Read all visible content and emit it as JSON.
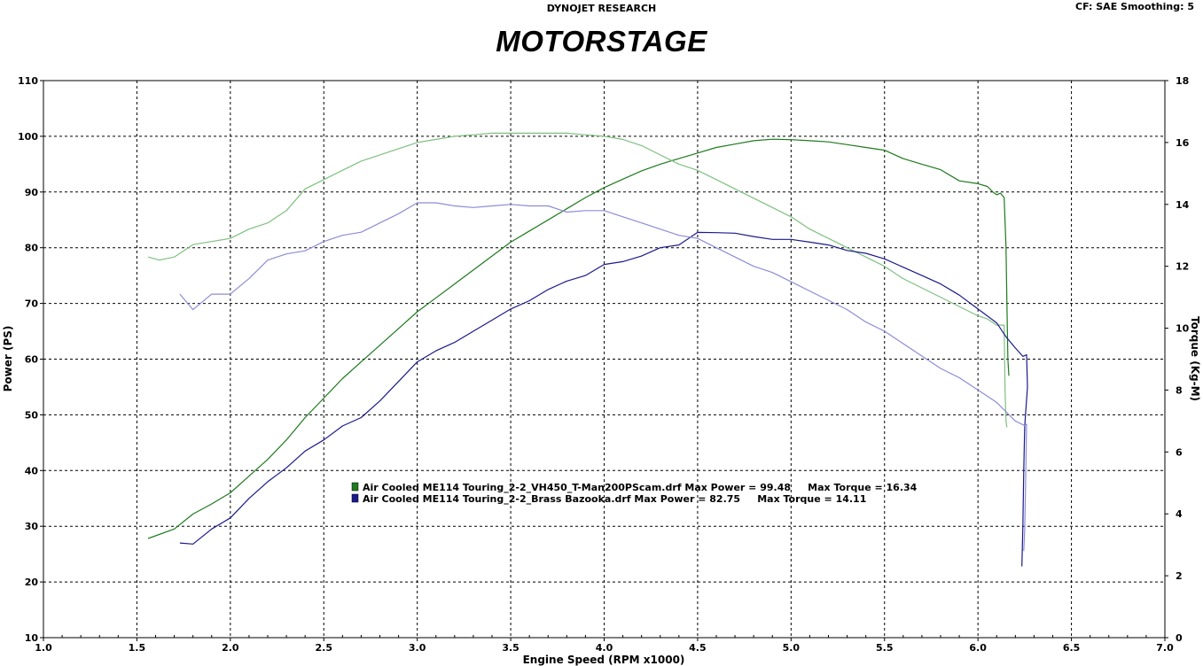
{
  "header": {
    "company": "DYNOJET RESEARCH",
    "settings": "CF: SAE  Smoothing: 5",
    "title": "MOTORSTAGE"
  },
  "chart_data": {
    "type": "line",
    "xlabel": "Engine Speed (RPM x1000)",
    "ylabel_left": "Power (PS)",
    "ylabel_right": "Torque (Kg-M)",
    "xlim": [
      1.0,
      7.0
    ],
    "ylim_left": [
      10,
      110
    ],
    "ylim_right": [
      0,
      18
    ],
    "x_ticks": [
      "1.0",
      "1.5",
      "2.0",
      "2.5",
      "3.0",
      "3.5",
      "4.0",
      "4.5",
      "5.0",
      "5.5",
      "6.0",
      "6.5",
      "7.0"
    ],
    "y_left_ticks": [
      "10",
      "20",
      "30",
      "40",
      "50",
      "60",
      "70",
      "80",
      "90",
      "100",
      "110"
    ],
    "y_right_ticks": [
      "0",
      "2",
      "4",
      "6",
      "8",
      "10",
      "12",
      "14",
      "16",
      "18"
    ],
    "grid": true,
    "legend_position": "center",
    "colors": {
      "run1_power": "#1e7a1e",
      "run1_torque": "#7fc07f",
      "run2_power": "#1a1a8c",
      "run2_torque": "#8c8cd8",
      "grid": "#000000"
    },
    "legend": [
      "Air Cooled ME114 Touring_2-2_VH450_T-Man200PScam.drf Max Power = 99.48     Max Torque = 16.34",
      "Air Cooled ME114 Touring_2-2_Brass Bazooka.drf Max Power = 82.75     Max Torque = 14.11"
    ],
    "series": [
      {
        "name": "Air Cooled ME114 Touring_2-2_VH450_T-Man200PScam.drf",
        "measure": "power",
        "axis": "left",
        "color": "#1e7a1e",
        "points": [
          [
            1.56,
            27.8
          ],
          [
            1.7,
            29.5
          ],
          [
            1.8,
            32.2
          ],
          [
            1.9,
            34.0
          ],
          [
            2.0,
            36.0
          ],
          [
            2.1,
            39.0
          ],
          [
            2.2,
            42.0
          ],
          [
            2.3,
            45.5
          ],
          [
            2.4,
            49.5
          ],
          [
            2.5,
            53.0
          ],
          [
            2.6,
            56.5
          ],
          [
            2.7,
            59.5
          ],
          [
            2.8,
            62.5
          ],
          [
            2.9,
            65.5
          ],
          [
            3.0,
            68.5
          ],
          [
            3.1,
            71.0
          ],
          [
            3.2,
            73.5
          ],
          [
            3.3,
            76.0
          ],
          [
            3.4,
            78.5
          ],
          [
            3.5,
            81.0
          ],
          [
            3.6,
            83.0
          ],
          [
            3.7,
            85.0
          ],
          [
            3.8,
            87.0
          ],
          [
            3.9,
            89.0
          ],
          [
            4.0,
            90.8
          ],
          [
            4.1,
            92.3
          ],
          [
            4.2,
            93.8
          ],
          [
            4.3,
            95.0
          ],
          [
            4.4,
            96.0
          ],
          [
            4.5,
            97.0
          ],
          [
            4.6,
            98.0
          ],
          [
            4.7,
            98.6
          ],
          [
            4.8,
            99.2
          ],
          [
            4.9,
            99.48
          ],
          [
            5.0,
            99.4
          ],
          [
            5.1,
            99.2
          ],
          [
            5.2,
            99.0
          ],
          [
            5.3,
            98.5
          ],
          [
            5.4,
            98.0
          ],
          [
            5.5,
            97.5
          ],
          [
            5.6,
            96.0
          ],
          [
            5.7,
            95.0
          ],
          [
            5.8,
            94.0
          ],
          [
            5.9,
            92.0
          ],
          [
            6.0,
            91.5
          ],
          [
            6.05,
            91.0
          ],
          [
            6.08,
            90.0
          ],
          [
            6.1,
            89.5
          ],
          [
            6.12,
            89.8
          ],
          [
            6.14,
            89.0
          ],
          [
            6.15,
            80.0
          ],
          [
            6.155,
            70.0
          ],
          [
            6.16,
            60.0
          ],
          [
            6.165,
            57.0
          ]
        ]
      },
      {
        "name": "Air Cooled ME114 Touring_2-2_VH450_T-Man200PScam.drf",
        "measure": "torque",
        "axis": "right",
        "color": "#7fc07f",
        "points": [
          [
            1.56,
            12.3
          ],
          [
            1.62,
            12.2
          ],
          [
            1.7,
            12.3
          ],
          [
            1.8,
            12.7
          ],
          [
            1.9,
            12.8
          ],
          [
            2.0,
            12.9
          ],
          [
            2.1,
            13.2
          ],
          [
            2.2,
            13.4
          ],
          [
            2.3,
            13.8
          ],
          [
            2.4,
            14.5
          ],
          [
            2.5,
            14.8
          ],
          [
            2.6,
            15.1
          ],
          [
            2.7,
            15.4
          ],
          [
            2.8,
            15.6
          ],
          [
            2.9,
            15.8
          ],
          [
            3.0,
            16.0
          ],
          [
            3.1,
            16.1
          ],
          [
            3.2,
            16.2
          ],
          [
            3.3,
            16.25
          ],
          [
            3.4,
            16.3
          ],
          [
            3.5,
            16.3
          ],
          [
            3.6,
            16.3
          ],
          [
            3.7,
            16.3
          ],
          [
            3.8,
            16.3
          ],
          [
            3.9,
            16.25
          ],
          [
            4.0,
            16.2
          ],
          [
            4.1,
            16.1
          ],
          [
            4.2,
            15.9
          ],
          [
            4.3,
            15.6
          ],
          [
            4.4,
            15.3
          ],
          [
            4.5,
            15.1
          ],
          [
            4.6,
            14.8
          ],
          [
            4.7,
            14.5
          ],
          [
            4.8,
            14.2
          ],
          [
            4.9,
            13.9
          ],
          [
            5.0,
            13.6
          ],
          [
            5.1,
            13.2
          ],
          [
            5.2,
            12.9
          ],
          [
            5.3,
            12.6
          ],
          [
            5.4,
            12.3
          ],
          [
            5.5,
            12.0
          ],
          [
            5.6,
            11.6
          ],
          [
            5.7,
            11.3
          ],
          [
            5.8,
            11.0
          ],
          [
            5.9,
            10.7
          ],
          [
            6.0,
            10.4
          ],
          [
            6.05,
            10.3
          ],
          [
            6.1,
            10.1
          ],
          [
            6.14,
            10.1
          ],
          [
            6.145,
            8.0
          ],
          [
            6.15,
            7.0
          ],
          [
            6.155,
            6.8
          ]
        ]
      },
      {
        "name": "Air Cooled ME114 Touring_2-2_Brass Bazooka.drf",
        "measure": "power",
        "axis": "left",
        "color": "#1a1a8c",
        "points": [
          [
            1.73,
            27.0
          ],
          [
            1.8,
            26.8
          ],
          [
            1.9,
            29.5
          ],
          [
            2.0,
            31.5
          ],
          [
            2.1,
            35.0
          ],
          [
            2.2,
            38.0
          ],
          [
            2.3,
            40.5
          ],
          [
            2.4,
            43.5
          ],
          [
            2.5,
            45.5
          ],
          [
            2.6,
            48.0
          ],
          [
            2.7,
            49.5
          ],
          [
            2.8,
            52.5
          ],
          [
            2.9,
            56.0
          ],
          [
            3.0,
            59.5
          ],
          [
            3.1,
            61.5
          ],
          [
            3.2,
            63.0
          ],
          [
            3.3,
            65.0
          ],
          [
            3.4,
            67.0
          ],
          [
            3.5,
            69.0
          ],
          [
            3.6,
            70.5
          ],
          [
            3.7,
            72.5
          ],
          [
            3.8,
            74.0
          ],
          [
            3.9,
            75.0
          ],
          [
            4.0,
            77.0
          ],
          [
            4.1,
            77.5
          ],
          [
            4.2,
            78.5
          ],
          [
            4.3,
            80.0
          ],
          [
            4.4,
            80.5
          ],
          [
            4.5,
            82.75
          ],
          [
            4.6,
            82.7
          ],
          [
            4.7,
            82.6
          ],
          [
            4.8,
            82.0
          ],
          [
            4.9,
            81.5
          ],
          [
            5.0,
            81.5
          ],
          [
            5.1,
            81.0
          ],
          [
            5.2,
            80.5
          ],
          [
            5.3,
            79.5
          ],
          [
            5.4,
            79.0
          ],
          [
            5.5,
            78.0
          ],
          [
            5.6,
            76.5
          ],
          [
            5.7,
            75.0
          ],
          [
            5.8,
            73.5
          ],
          [
            5.9,
            71.5
          ],
          [
            6.0,
            69.0
          ],
          [
            6.1,
            66.5
          ],
          [
            6.15,
            64.0
          ],
          [
            6.2,
            62.0
          ],
          [
            6.24,
            60.5
          ],
          [
            6.26,
            60.8
          ],
          [
            6.265,
            55.0
          ],
          [
            6.25,
            48.0
          ],
          [
            6.245,
            40.0
          ],
          [
            6.24,
            30.0
          ],
          [
            6.235,
            22.8
          ]
        ]
      },
      {
        "name": "Air Cooled ME114 Touring_2-2_Brass Bazooka.drf",
        "measure": "torque",
        "axis": "right",
        "color": "#8c8cd8",
        "points": [
          [
            1.73,
            11.1
          ],
          [
            1.8,
            10.6
          ],
          [
            1.9,
            11.1
          ],
          [
            2.0,
            11.1
          ],
          [
            2.1,
            11.6
          ],
          [
            2.2,
            12.2
          ],
          [
            2.3,
            12.4
          ],
          [
            2.4,
            12.5
          ],
          [
            2.5,
            12.8
          ],
          [
            2.6,
            13.0
          ],
          [
            2.7,
            13.1
          ],
          [
            2.8,
            13.4
          ],
          [
            2.9,
            13.7
          ],
          [
            3.0,
            14.05
          ],
          [
            3.1,
            14.05
          ],
          [
            3.2,
            13.95
          ],
          [
            3.3,
            13.9
          ],
          [
            3.4,
            13.95
          ],
          [
            3.5,
            14.0
          ],
          [
            3.6,
            13.95
          ],
          [
            3.7,
            13.95
          ],
          [
            3.8,
            13.75
          ],
          [
            3.9,
            13.8
          ],
          [
            4.0,
            13.8
          ],
          [
            4.1,
            13.6
          ],
          [
            4.2,
            13.4
          ],
          [
            4.3,
            13.2
          ],
          [
            4.4,
            13.0
          ],
          [
            4.5,
            12.9
          ],
          [
            4.6,
            12.6
          ],
          [
            4.7,
            12.3
          ],
          [
            4.8,
            12.0
          ],
          [
            4.9,
            11.8
          ],
          [
            5.0,
            11.5
          ],
          [
            5.1,
            11.2
          ],
          [
            5.2,
            10.9
          ],
          [
            5.3,
            10.6
          ],
          [
            5.4,
            10.2
          ],
          [
            5.5,
            9.9
          ],
          [
            5.6,
            9.5
          ],
          [
            5.7,
            9.1
          ],
          [
            5.8,
            8.7
          ],
          [
            5.9,
            8.4
          ],
          [
            6.0,
            8.0
          ],
          [
            6.1,
            7.6
          ],
          [
            6.15,
            7.3
          ],
          [
            6.2,
            7.0
          ],
          [
            6.25,
            6.85
          ],
          [
            6.26,
            6.9
          ],
          [
            6.255,
            5.0
          ],
          [
            6.25,
            3.5
          ],
          [
            6.245,
            2.8
          ]
        ]
      }
    ]
  }
}
